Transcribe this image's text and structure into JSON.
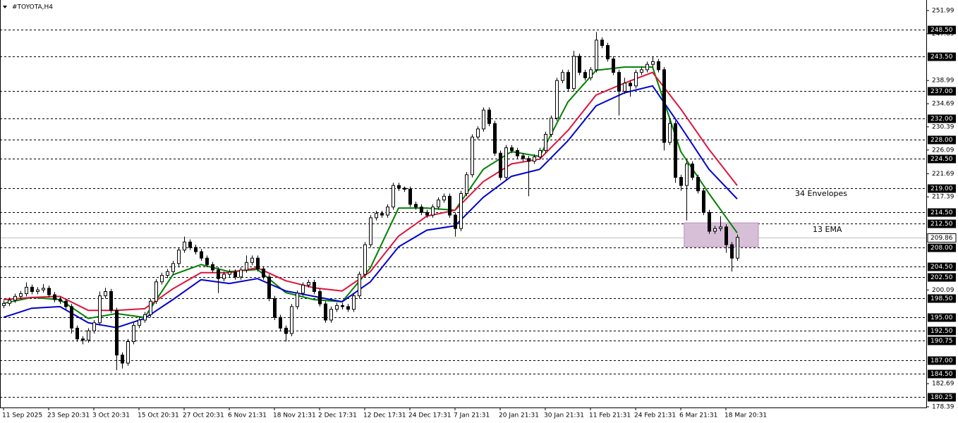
{
  "chart_data": {
    "type": "candlestick",
    "title": "#TOYOTA,H4",
    "categories": [
      "11 Sep 2025",
      null,
      null,
      null,
      null,
      null,
      null,
      null,
      "23 Sep 20:31",
      null,
      null,
      null,
      null,
      null,
      null,
      null,
      "3 Oct 20:31",
      null,
      null,
      null,
      null,
      null,
      null,
      null,
      "15 Oct 20:31",
      null,
      null,
      null,
      null,
      null,
      null,
      null,
      "27 Oct 20:31",
      null,
      null,
      null,
      null,
      null,
      null,
      null,
      "6 Nov 21:31",
      null,
      null,
      null,
      null,
      null,
      null,
      null,
      "18 Nov 21:31",
      null,
      null,
      null,
      null,
      null,
      null,
      null,
      "2 Dec 17:31",
      null,
      null,
      null,
      null,
      null,
      null,
      null,
      "12 Dec 17:31",
      null,
      null,
      null,
      null,
      null,
      null,
      null,
      "24 Dec 17:31",
      null,
      null,
      null,
      null,
      null,
      null,
      null,
      "7 Jan 21:31",
      null,
      null,
      null,
      null,
      null,
      null,
      null,
      "20 Jan 21:31",
      null,
      null,
      null,
      null,
      null,
      null,
      null,
      "30 Jan 21:31",
      null,
      null,
      null,
      null,
      null,
      null,
      null,
      "11 Feb 21:31",
      null,
      null,
      null,
      null,
      null,
      null,
      null,
      "24 Feb 21:31",
      null,
      null,
      null,
      null,
      null,
      null,
      null,
      "6 Mar 21:31",
      null,
      null,
      null,
      null,
      null,
      null,
      null,
      "18 Mar 20:31",
      null,
      null
    ],
    "open": [
      197.2,
      197.6,
      198.2,
      198.9,
      199.4,
      200.6,
      199.8,
      200.1,
      200.4,
      199.2,
      198.3,
      198.0,
      197.0,
      193.0,
      191.0,
      190.8,
      192.5,
      194.0,
      199.0,
      199.8,
      196.3,
      188.0,
      186.5,
      190.5,
      193.5,
      194.5,
      195.5,
      198.0,
      201.6,
      202.8,
      203.5,
      205.0,
      207.5,
      209.0,
      208.0,
      207.2,
      206.0,
      204.8,
      203.8,
      202.2,
      203.0,
      203.4,
      202.5,
      203.8,
      205.2,
      206.0,
      204.0,
      202.5,
      198.5,
      195.0,
      193.0,
      192.0,
      197.0,
      199.5,
      201.0,
      201.5,
      199.8,
      197.5,
      194.5,
      196.5,
      197.2,
      197.0,
      196.5,
      199.0,
      203.0,
      208.5,
      213.5,
      214.3,
      214.0,
      215.5,
      219.5,
      219.0,
      218.8,
      216.0,
      215.5,
      214.5,
      214.0,
      215.5,
      216.8,
      217.5,
      214.0,
      211.5,
      218.0,
      221.5,
      228.5,
      230.0,
      233.5,
      231.0,
      225.5,
      221.0,
      226.5,
      226.0,
      225.0,
      224.5,
      224.0,
      224.8,
      226.0,
      229.0,
      232.0,
      239.0,
      240.5,
      237.5,
      243.5,
      240.5,
      239.5,
      241.0,
      246.5,
      245.5,
      243.0,
      240.5,
      237.0,
      238.5,
      238.0,
      240.5,
      241.0,
      242.0,
      242.5,
      241.0,
      227.5,
      231.0,
      221.0,
      219.5,
      223.5,
      221.0,
      218.5,
      214.5,
      211.0,
      211.5,
      211.8,
      208.5,
      206.0
    ],
    "high": [
      198.1,
      198.7,
      199.4,
      199.9,
      201.5,
      201.1,
      200.6,
      201.2,
      200.9,
      199.7,
      198.8,
      198.5,
      197.5,
      193.5,
      191.5,
      193.0,
      194.5,
      199.8,
      200.5,
      200.3,
      196.8,
      188.5,
      191.0,
      194.0,
      195.0,
      196.0,
      198.5,
      202.1,
      203.3,
      204.0,
      205.5,
      208.0,
      210.0,
      209.5,
      208.5,
      207.7,
      206.5,
      205.3,
      204.3,
      203.5,
      203.9,
      203.9,
      204.3,
      206.5,
      206.5,
      206.5,
      204.5,
      203.0,
      199.0,
      195.5,
      193.5,
      197.5,
      200.0,
      201.5,
      202.0,
      202.0,
      200.3,
      198.0,
      197.0,
      197.7,
      197.7,
      197.5,
      199.5,
      203.5,
      209.0,
      214.0,
      214.8,
      214.8,
      216.0,
      220.0,
      220.0,
      219.3,
      219.3,
      216.5,
      216.0,
      215.0,
      216.0,
      217.3,
      218.0,
      218.0,
      214.5,
      218.5,
      222.0,
      229.0,
      230.5,
      234.0,
      234.0,
      231.5,
      226.0,
      227.0,
      227.0,
      226.5,
      225.5,
      225.0,
      225.3,
      226.5,
      229.5,
      232.5,
      239.5,
      241.0,
      241.0,
      244.5,
      244.0,
      241.0,
      241.5,
      248.0,
      247.0,
      246.0,
      243.5,
      241.0,
      239.5,
      239.0,
      241.0,
      241.5,
      242.5,
      243.5,
      243.0,
      241.5,
      232.0,
      231.5,
      221.5,
      224.5,
      224.0,
      221.5,
      219.0,
      215.0,
      212.0,
      213.8,
      212.3,
      209.0,
      210.4
    ],
    "low": [
      196.7,
      197.1,
      197.7,
      198.4,
      198.9,
      199.3,
      199.3,
      199.6,
      198.7,
      197.8,
      197.5,
      196.5,
      192.0,
      190.5,
      190.0,
      190.3,
      192.0,
      193.5,
      198.5,
      195.8,
      185.2,
      185.5,
      186.0,
      190.0,
      193.0,
      194.0,
      195.0,
      197.5,
      201.1,
      202.3,
      203.0,
      204.5,
      207.0,
      207.5,
      206.7,
      205.5,
      204.3,
      203.3,
      199.5,
      201.7,
      202.5,
      202.0,
      202.0,
      203.3,
      204.7,
      203.5,
      202.0,
      198.0,
      194.5,
      192.5,
      190.5,
      191.5,
      196.5,
      199.0,
      200.5,
      199.3,
      197.0,
      194.0,
      194.0,
      196.0,
      196.5,
      196.0,
      196.0,
      198.5,
      202.5,
      208.0,
      213.0,
      213.5,
      213.5,
      215.0,
      218.5,
      218.3,
      215.5,
      215.0,
      214.0,
      213.5,
      213.5,
      215.0,
      216.3,
      213.5,
      210.0,
      211.0,
      217.5,
      221.0,
      228.0,
      229.5,
      230.5,
      225.0,
      220.5,
      220.5,
      225.5,
      224.5,
      224.0,
      217.5,
      223.5,
      224.3,
      225.5,
      228.5,
      231.5,
      238.5,
      237.0,
      237.0,
      240.0,
      239.0,
      239.0,
      240.5,
      245.0,
      242.5,
      240.0,
      232.5,
      236.5,
      236.0,
      237.5,
      240.0,
      240.5,
      241.5,
      240.5,
      226.0,
      227.0,
      220.0,
      218.5,
      213.0,
      220.5,
      218.0,
      214.0,
      210.5,
      210.5,
      211.0,
      207.0,
      203.5,
      205.5
    ],
    "close": [
      197.6,
      198.2,
      198.9,
      199.4,
      200.6,
      199.8,
      200.1,
      200.4,
      199.2,
      198.3,
      198.0,
      197.0,
      193.0,
      191.0,
      190.8,
      192.5,
      194.0,
      199.0,
      199.8,
      196.3,
      188.0,
      186.5,
      190.5,
      193.5,
      194.5,
      195.5,
      198.0,
      201.6,
      202.8,
      203.5,
      205.0,
      207.5,
      209.0,
      208.0,
      207.2,
      206.0,
      204.8,
      203.8,
      202.2,
      203.0,
      203.4,
      202.5,
      203.8,
      205.2,
      206.0,
      204.0,
      202.5,
      198.5,
      195.0,
      193.0,
      192.0,
      197.0,
      199.5,
      201.0,
      201.5,
      199.8,
      197.5,
      194.5,
      196.5,
      197.2,
      197.0,
      196.5,
      199.0,
      203.0,
      208.5,
      213.5,
      214.3,
      214.0,
      215.5,
      219.5,
      219.0,
      218.8,
      216.0,
      215.5,
      214.5,
      214.0,
      215.5,
      216.8,
      217.5,
      214.0,
      211.5,
      218.0,
      221.5,
      228.5,
      230.0,
      233.5,
      231.0,
      225.5,
      221.0,
      226.5,
      226.0,
      225.0,
      224.5,
      224.0,
      224.8,
      226.0,
      229.0,
      232.0,
      239.0,
      240.5,
      237.5,
      243.5,
      240.5,
      239.5,
      241.0,
      246.5,
      245.5,
      243.0,
      240.5,
      237.0,
      238.5,
      238.0,
      240.5,
      241.0,
      242.0,
      242.5,
      241.0,
      227.5,
      231.0,
      221.0,
      219.5,
      223.5,
      221.0,
      218.5,
      214.5,
      211.0,
      211.5,
      211.8,
      208.5,
      206.0,
      209.86
    ],
    "up_color": "#ffffff",
    "down_color": "#000000",
    "lines": [
      {
        "name": "13 EMA",
        "color": "#008000",
        "x": [
          0,
          5,
          10,
          15,
          20,
          25,
          30,
          35,
          40,
          45,
          50,
          55,
          60,
          65,
          70,
          75,
          80,
          85,
          90,
          95,
          100,
          105,
          110,
          115,
          120,
          125,
          130
        ],
        "values": [
          197.6,
          198.7,
          198.3,
          194.8,
          195.7,
          195.0,
          202.9,
          204.8,
          203.5,
          203.9,
          199.6,
          198.3,
          197.9,
          204.2,
          215.3,
          215.3,
          214.9,
          222.5,
          225.8,
          224.9,
          235.0,
          240.9,
          241.5,
          241.5,
          225.8,
          218.0,
          210.7
        ]
      },
      {
        "color": "#dc143c",
        "x": [
          0,
          5,
          10,
          15,
          20,
          25,
          30,
          35,
          40,
          45,
          50,
          55,
          60,
          65,
          70,
          75,
          80,
          85,
          90,
          95,
          100,
          105,
          110,
          115,
          120,
          125,
          130
        ],
        "values": [
          198.3,
          198.7,
          198.9,
          196.3,
          196.3,
          196.6,
          200.3,
          203.3,
          203.3,
          204.2,
          201.8,
          200.5,
          199.9,
          203.5,
          210.1,
          213.8,
          214.9,
          220.2,
          223.5,
          224.4,
          229.7,
          236.3,
          238.5,
          240.5,
          233.7,
          226.2,
          219.5
        ]
      },
      {
        "name": "34 Envelopes",
        "color": "#0000cd",
        "x": [
          0,
          5,
          10,
          15,
          20,
          25,
          30,
          35,
          40,
          45,
          50,
          55,
          60,
          65,
          70,
          75,
          80,
          85,
          90,
          95,
          100,
          105,
          110,
          115,
          120,
          125,
          130
        ],
        "values": [
          195.0,
          196.7,
          197.0,
          194.0,
          193.1,
          194.8,
          198.3,
          202.0,
          201.3,
          202.2,
          199.9,
          198.9,
          197.9,
          201.6,
          208.1,
          211.2,
          212.0,
          217.3,
          221.2,
          222.5,
          227.8,
          234.3,
          236.7,
          238.0,
          230.4,
          222.5,
          217.0
        ]
      }
    ],
    "zone": {
      "x": [
        120.6,
        133.75
      ],
      "y": [
        208.1,
        212.55
      ],
      "color": "#d8bfd8"
    },
    "xlim": [
      -0.625,
      163.5
    ],
    "ylim": [
      178.26,
      253.95
    ],
    "yticks": [
      251.99,
      247.69,
      238.99,
      234.69,
      230.39,
      226.09,
      221.69,
      217.39,
      200.09,
      182.69,
      178.39
    ],
    "levels": [
      {
        "value": 248.5,
        "label": "248.50"
      },
      {
        "value": 243.5,
        "label": "243.50"
      },
      {
        "value": 237,
        "label": "237.00"
      },
      {
        "value": 232,
        "label": "232.00"
      },
      {
        "value": 228,
        "label": "228.00"
      },
      {
        "value": 224.5,
        "label": "224.50"
      },
      {
        "value": 219,
        "label": "219.00"
      },
      {
        "value": 214.5,
        "label": "214.50"
      },
      {
        "value": 212.5,
        "label": "212.50"
      },
      {
        "value": 208,
        "label": "208.00"
      },
      {
        "value": 204.5,
        "label": "204.50"
      },
      {
        "value": 202.5,
        "label": "202.50"
      },
      {
        "value": 198.5,
        "label": "198.50"
      },
      {
        "value": 195,
        "label": "195.00"
      },
      {
        "value": 192.5,
        "label": "192.50"
      },
      190.75,
      {
        "value": 187,
        "label": "187.00"
      },
      {
        "value": 184.5,
        "label": "184.50"
      },
      180.25
    ]
  }
}
